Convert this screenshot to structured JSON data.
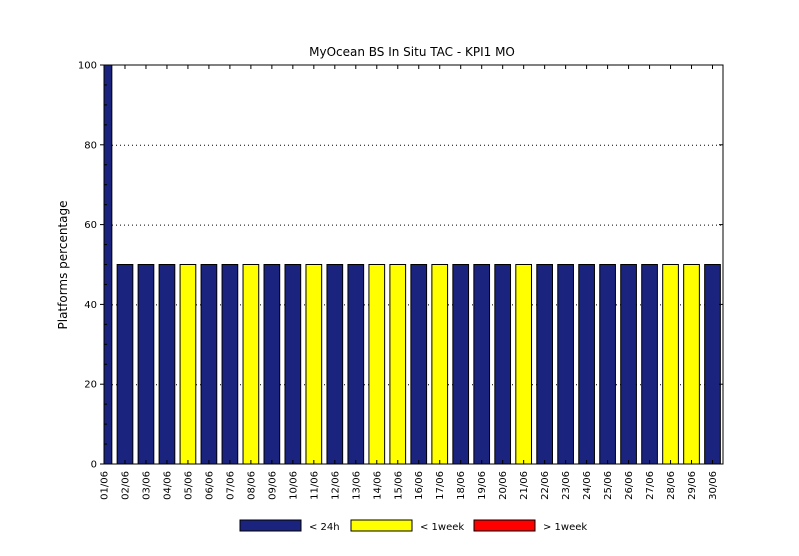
{
  "chart_data": {
    "type": "bar",
    "title": "MyOcean  BS In Situ TAC - KPI1  MO",
    "xlabel": "",
    "ylabel": "Platforms percentage",
    "ylim": [
      0,
      100
    ],
    "yticks": [
      0,
      20,
      40,
      60,
      80,
      100
    ],
    "grid": "dotted horizontal at y ticks",
    "legend_position": "bottom",
    "categories": [
      "01/06",
      "02/06",
      "03/06",
      "04/06",
      "05/06",
      "06/06",
      "07/06",
      "08/06",
      "09/06",
      "10/06",
      "11/06",
      "12/06",
      "13/06",
      "14/06",
      "15/06",
      "16/06",
      "17/06",
      "18/06",
      "19/06",
      "20/06",
      "21/06",
      "22/06",
      "23/06",
      "24/06",
      "25/06",
      "26/06",
      "27/06",
      "28/06",
      "29/06",
      "30/06"
    ],
    "values": [
      100,
      50,
      50,
      50,
      50,
      50,
      50,
      50,
      50,
      50,
      50,
      50,
      50,
      50,
      50,
      50,
      50,
      50,
      50,
      50,
      50,
      50,
      50,
      50,
      50,
      50,
      50,
      50,
      50,
      50
    ],
    "bar_series": [
      "<24h",
      "<24h",
      "<24h",
      "<24h",
      "<1week",
      "<24h",
      "<24h",
      "<1week",
      "<24h",
      "<24h",
      "<1week",
      "<24h",
      "<24h",
      "<1week",
      "<1week",
      "<24h",
      "<1week",
      "<24h",
      "<24h",
      "<24h",
      "<1week",
      "<24h",
      "<24h",
      "<24h",
      "<24h",
      "<24h",
      "<24h",
      "<1week",
      "<1week",
      "<24h"
    ],
    "series": [
      {
        "key": "<24h",
        "name": "< 24h",
        "color": "#1a237e"
      },
      {
        "key": "<1week",
        "name": "< 1week",
        "color": "#ffff00"
      },
      {
        "key": ">1week",
        "name": "> 1week",
        "color": "#ff0000"
      }
    ]
  }
}
